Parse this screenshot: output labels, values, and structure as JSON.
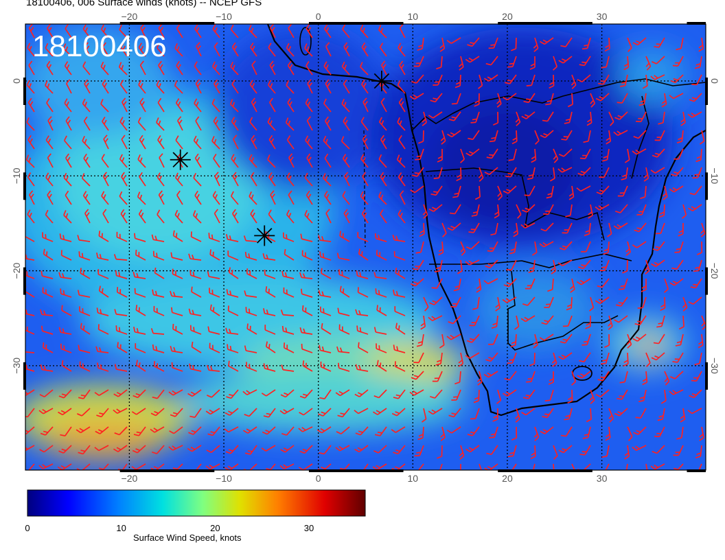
{
  "title": "18100406, 006 Surface winds (knots) -- NCEP GFS",
  "stamp": "18100406",
  "map": {
    "lon_range": [
      -31,
      41
    ],
    "lat_range": [
      -41,
      6
    ],
    "lon_ticks": [
      -20,
      -10,
      0,
      10,
      20,
      30
    ],
    "lat_ticks": [
      0,
      -10,
      -20,
      -30
    ],
    "lon_tick_labels": [
      "−20",
      "−10",
      "0",
      "10",
      "20",
      "30"
    ],
    "lat_tick_labels": [
      "0",
      "−10",
      "−20",
      "−30"
    ],
    "grid": true,
    "barb_color": "#ff2020",
    "coast_color": "#000000",
    "markers": [
      {
        "name": "storm-marker-1",
        "lon": 6.7,
        "lat": 0.0
      },
      {
        "name": "storm-marker-2",
        "lon": -14.6,
        "lat": -8.3
      },
      {
        "name": "storm-marker-3",
        "lon": -5.7,
        "lat": -16.3
      }
    ]
  },
  "colorbar": {
    "label": "Surface Wind Speed, knots",
    "ticks": [
      0,
      10,
      20,
      30
    ],
    "tick_labels": [
      "0",
      "10",
      "20",
      "30"
    ],
    "min": 0,
    "max": 36,
    "colormap": [
      "#00007f",
      "#0000ff",
      "#0080ff",
      "#00e0e0",
      "#80ff80",
      "#e0e000",
      "#ff8000",
      "#e00000",
      "#600000"
    ]
  }
}
